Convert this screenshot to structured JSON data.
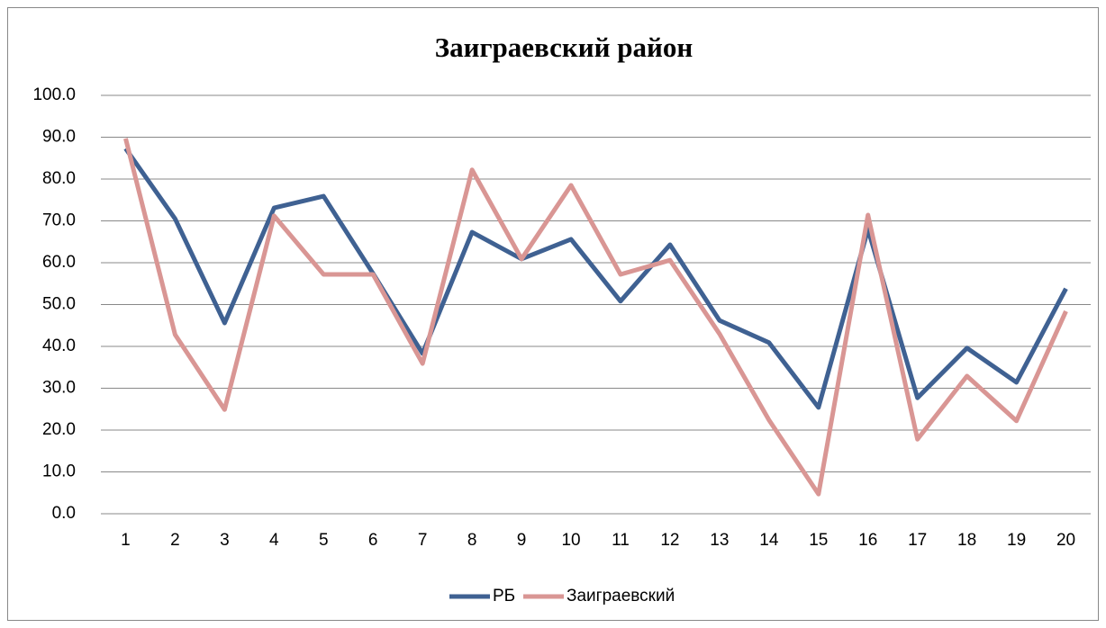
{
  "chart_data": {
    "type": "line",
    "title": "Заиграевский район",
    "categories": [
      "1",
      "2",
      "3",
      "4",
      "5",
      "6",
      "7",
      "8",
      "9",
      "10",
      "11",
      "12",
      "13",
      "14",
      "15",
      "16",
      "17",
      "18",
      "19",
      "20"
    ],
    "series": [
      {
        "name": "РБ",
        "color": "#3f6192",
        "values": [
          87.3,
          70.5,
          45.6,
          73.1,
          75.9,
          57.4,
          38.3,
          67.3,
          60.9,
          65.6,
          50.8,
          64.3,
          46.2,
          40.9,
          25.4,
          68.0,
          27.7,
          39.6,
          31.4,
          53.8
        ]
      },
      {
        "name": "Заиграевский",
        "color": "#d99694",
        "values": [
          89.7,
          42.8,
          24.9,
          71.2,
          57.2,
          57.2,
          35.9,
          82.2,
          60.9,
          78.5,
          57.2,
          60.6,
          43.0,
          22.4,
          4.7,
          71.4,
          17.8,
          32.9,
          22.2,
          48.4
        ]
      }
    ],
    "ylim": [
      0,
      100
    ],
    "yticks": [
      {
        "value": 0,
        "label": "0.0"
      },
      {
        "value": 10,
        "label": "10.0"
      },
      {
        "value": 20,
        "label": "20.0"
      },
      {
        "value": 30,
        "label": "30.0"
      },
      {
        "value": 40,
        "label": "40.0"
      },
      {
        "value": 50,
        "label": "50.0"
      },
      {
        "value": 60,
        "label": "60.0"
      },
      {
        "value": 70,
        "label": "70.0"
      },
      {
        "value": 80,
        "label": "80.0"
      },
      {
        "value": 90,
        "label": "90.0"
      },
      {
        "value": 100,
        "label": "100.0"
      }
    ],
    "grid": true,
    "legend": "bottom"
  }
}
